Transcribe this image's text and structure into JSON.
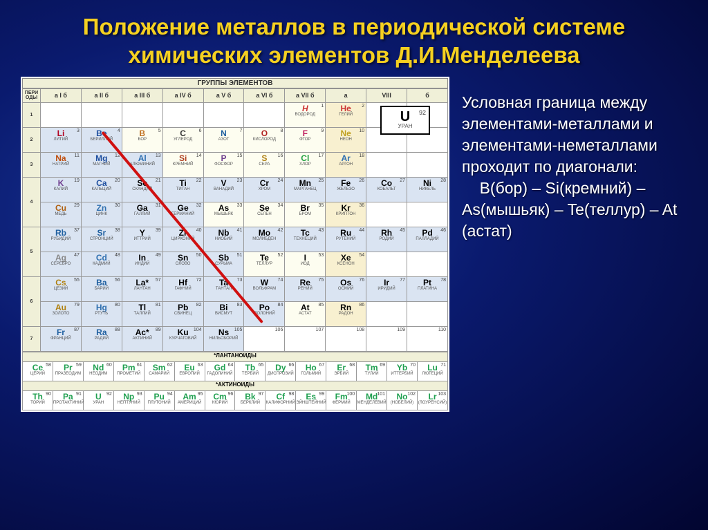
{
  "title": "Положение металлов в периодической системе химических элементов Д.И.Менделеева",
  "table_header": "ГРУППЫ ЭЛЕМЕНТОВ",
  "period_header": "ПЕРИ\nОДЫ",
  "groups": [
    "а I б",
    "а II б",
    "а III б",
    "а IV б",
    "а V б",
    "а VI б",
    "а VII б",
    "а",
    "VIII",
    "б"
  ],
  "periods": [
    "1",
    "2",
    "3",
    "4",
    "5",
    "6",
    "7"
  ],
  "legend": {
    "sym": "U",
    "num": "92",
    "name": "УРАН"
  },
  "side_text": {
    "p1": "Условная граница между элементами-металлами и элементами-неметаллами проходит по диагонали:",
    "p2": "    B(бор) – Si(кремний) – As(мышьяк) – Te(теллур) – At (астат)"
  },
  "series": {
    "lan_label": "*ЛАНТАНОИДЫ",
    "act_label": "*АКТИНОИДЫ"
  },
  "rows": {
    "r1": [
      null,
      null,
      null,
      null,
      null,
      null,
      {
        "class": "nonmetal h",
        "sym": "H",
        "n": "1",
        "name": "ВОДОРОД"
      },
      {
        "class": "noble he",
        "sym": "He",
        "n": "2",
        "name": "ГЕЛИЙ"
      },
      null,
      null
    ],
    "r2": [
      {
        "class": "metal li",
        "sym": "Li",
        "n": "3",
        "name": "ЛИТИЙ"
      },
      {
        "class": "metal be",
        "sym": "Be",
        "n": "4",
        "name": "БЕРИЛЛИЙ"
      },
      {
        "class": "nonmetal b",
        "sym": "B",
        "n": "5",
        "name": "БОР"
      },
      {
        "class": "nonmetal c",
        "sym": "C",
        "n": "6",
        "name": "УГЛЕРОД"
      },
      {
        "class": "nonmetal n",
        "sym": "N",
        "n": "7",
        "name": "АЗОТ"
      },
      {
        "class": "nonmetal o",
        "sym": "O",
        "n": "8",
        "name": "КИСЛОРОД"
      },
      {
        "class": "nonmetal f",
        "sym": "F",
        "n": "9",
        "name": "ФТОР"
      },
      {
        "class": "noble ne",
        "sym": "Ne",
        "n": "10",
        "name": "НЕОН"
      },
      null,
      null
    ],
    "r3": [
      {
        "class": "metal na",
        "sym": "Na",
        "n": "11",
        "name": "НАТРИЙ"
      },
      {
        "class": "metal mg",
        "sym": "Mg",
        "n": "12",
        "name": "МАГНИЙ"
      },
      {
        "class": "metal al",
        "sym": "Al",
        "n": "13",
        "name": "АЛЮМИНИЙ"
      },
      {
        "class": "nonmetal si",
        "sym": "Si",
        "n": "14",
        "name": "КРЕМНИЙ"
      },
      {
        "class": "nonmetal p",
        "sym": "P",
        "n": "15",
        "name": "ФОСФОР"
      },
      {
        "class": "nonmetal s",
        "sym": "S",
        "n": "16",
        "name": "СЕРА"
      },
      {
        "class": "nonmetal cl",
        "sym": "Cl",
        "n": "17",
        "name": "ХЛОР"
      },
      {
        "class": "noble ar",
        "sym": "Ar",
        "n": "18",
        "name": "АРГОН"
      },
      null,
      null
    ],
    "r4a": [
      {
        "class": "metal k",
        "sym": "K",
        "n": "19",
        "name": "КАЛИЙ"
      },
      {
        "class": "metal ca",
        "sym": "Ca",
        "n": "20",
        "name": "КАЛЬЦИЙ"
      },
      {
        "class": "metal",
        "sym": "Sc",
        "n": "21",
        "name": "СКАНДИЙ"
      },
      {
        "class": "metal",
        "sym": "Ti",
        "n": "22",
        "name": "ТИТАН"
      },
      {
        "class": "metal",
        "sym": "V",
        "n": "23",
        "name": "ВАНАДИЙ"
      },
      {
        "class": "metal",
        "sym": "Cr",
        "n": "24",
        "name": "ХРОМ"
      },
      {
        "class": "metal",
        "sym": "Mn",
        "n": "25",
        "name": "МАРГАНЕЦ"
      },
      {
        "class": "metal",
        "sym": "Fe",
        "n": "26",
        "name": "ЖЕЛЕЗО"
      },
      {
        "class": "metal",
        "sym": "Co",
        "n": "27",
        "name": "КОБАЛЬТ"
      },
      {
        "class": "metal",
        "sym": "Ni",
        "n": "28",
        "name": "НИКЕЛЬ"
      }
    ],
    "r4b": [
      {
        "class": "metal cu",
        "sym": "Cu",
        "n": "29",
        "name": "МЕДЬ"
      },
      {
        "class": "metal zn",
        "sym": "Zn",
        "n": "30",
        "name": "ЦИНК"
      },
      {
        "class": "metal",
        "sym": "Ga",
        "n": "31",
        "name": "ГАЛЛИЙ"
      },
      {
        "class": "metal",
        "sym": "Ge",
        "n": "32",
        "name": "ГЕРМАНИЙ"
      },
      {
        "class": "nonmetal",
        "sym": "As",
        "n": "33",
        "name": "МЫШЬЯК"
      },
      {
        "class": "nonmetal",
        "sym": "Se",
        "n": "34",
        "name": "СЕЛЕН"
      },
      {
        "class": "nonmetal",
        "sym": "Br",
        "n": "35",
        "name": "БРОМ"
      },
      {
        "class": "noble",
        "sym": "Kr",
        "n": "36",
        "name": "КРИПТОН"
      },
      null,
      null
    ],
    "r5a": [
      {
        "class": "metal rb",
        "sym": "Rb",
        "n": "37",
        "name": "РУБИДИЙ"
      },
      {
        "class": "metal sr",
        "sym": "Sr",
        "n": "38",
        "name": "СТРОНЦИЙ"
      },
      {
        "class": "metal",
        "sym": "Y",
        "n": "39",
        "name": "ИТТРИЙ"
      },
      {
        "class": "metal",
        "sym": "Zr",
        "n": "40",
        "name": "ЦИРКОНИЙ"
      },
      {
        "class": "metal",
        "sym": "Nb",
        "n": "41",
        "name": "НИОБИЙ"
      },
      {
        "class": "metal",
        "sym": "Mo",
        "n": "42",
        "name": "МОЛИБДЕН"
      },
      {
        "class": "metal",
        "sym": "Tc",
        "n": "43",
        "name": "ТЕХНЕЦИЙ"
      },
      {
        "class": "metal",
        "sym": "Ru",
        "n": "44",
        "name": "РУТЕНИЙ"
      },
      {
        "class": "metal",
        "sym": "Rh",
        "n": "45",
        "name": "РОДИЙ"
      },
      {
        "class": "metal",
        "sym": "Pd",
        "n": "46",
        "name": "ПАЛЛАДИЙ"
      }
    ],
    "r5b": [
      {
        "class": "metal ag",
        "sym": "Ag",
        "n": "47",
        "name": "СЕРЕБРО"
      },
      {
        "class": "metal cd",
        "sym": "Cd",
        "n": "48",
        "name": "КАДМИЙ"
      },
      {
        "class": "metal",
        "sym": "In",
        "n": "49",
        "name": "ИНДИЙ"
      },
      {
        "class": "metal",
        "sym": "Sn",
        "n": "50",
        "name": "ОЛОВО"
      },
      {
        "class": "metal",
        "sym": "Sb",
        "n": "51",
        "name": "СУРЬМА"
      },
      {
        "class": "nonmetal",
        "sym": "Te",
        "n": "52",
        "name": "ТЕЛЛУР"
      },
      {
        "class": "nonmetal",
        "sym": "I",
        "n": "53",
        "name": "ИОД"
      },
      {
        "class": "noble",
        "sym": "Xe",
        "n": "54",
        "name": "КСЕНОН"
      },
      null,
      null
    ],
    "r6a": [
      {
        "class": "metal cs",
        "sym": "Cs",
        "n": "55",
        "name": "ЦЕЗИЙ"
      },
      {
        "class": "metal ba",
        "sym": "Ba",
        "n": "56",
        "name": "БАРИЙ"
      },
      {
        "class": "metal",
        "sym": "La*",
        "n": "57",
        "name": "ЛАНТАН"
      },
      {
        "class": "metal",
        "sym": "Hf",
        "n": "72",
        "name": "ГАФНИЙ"
      },
      {
        "class": "metal",
        "sym": "Ta",
        "n": "73",
        "name": "ТАНТАЛ"
      },
      {
        "class": "metal",
        "sym": "W",
        "n": "74",
        "name": "ВОЛЬФРАМ"
      },
      {
        "class": "metal",
        "sym": "Re",
        "n": "75",
        "name": "РЕНИЙ"
      },
      {
        "class": "metal",
        "sym": "Os",
        "n": "76",
        "name": "ОСМИЙ"
      },
      {
        "class": "metal",
        "sym": "Ir",
        "n": "77",
        "name": "ИРИДИЙ"
      },
      {
        "class": "metal",
        "sym": "Pt",
        "n": "78",
        "name": "ПЛАТИНА"
      }
    ],
    "r6b": [
      {
        "class": "metal au",
        "sym": "Au",
        "n": "79",
        "name": "ЗОЛОТО"
      },
      {
        "class": "metal hg",
        "sym": "Hg",
        "n": "80",
        "name": "РТУТЬ"
      },
      {
        "class": "metal",
        "sym": "Tl",
        "n": "81",
        "name": "ТАЛЛИЙ"
      },
      {
        "class": "metal",
        "sym": "Pb",
        "n": "82",
        "name": "СВИНЕЦ"
      },
      {
        "class": "metal",
        "sym": "Bi",
        "n": "83",
        "name": "ВИСМУТ"
      },
      {
        "class": "metal",
        "sym": "Po",
        "n": "84",
        "name": "ПОЛОНИЙ"
      },
      {
        "class": "nonmetal",
        "sym": "At",
        "n": "85",
        "name": "АСТАТ"
      },
      {
        "class": "noble",
        "sym": "Rn",
        "n": "86",
        "name": "РАДОН"
      },
      null,
      null
    ],
    "r7a": [
      {
        "class": "metal fr",
        "sym": "Fr",
        "n": "87",
        "name": "ФРАНЦИЙ"
      },
      {
        "class": "metal ra",
        "sym": "Ra",
        "n": "88",
        "name": "РАДИЙ"
      },
      {
        "class": "metal",
        "sym": "Ac*",
        "n": "89",
        "name": "АКТИНИЙ"
      },
      {
        "class": "metal",
        "sym": "Ku",
        "n": "104",
        "name": "КУРЧАТОВИЙ"
      },
      {
        "class": "metal",
        "sym": "Ns",
        "n": "105",
        "name": "НИЛЬСБОРИЙ"
      },
      {
        "class": "",
        "sym": "",
        "n": "106",
        "name": ""
      },
      {
        "class": "",
        "sym": "",
        "n": "107",
        "name": ""
      },
      {
        "class": "",
        "sym": "",
        "n": "108",
        "name": ""
      },
      {
        "class": "",
        "sym": "",
        "n": "109",
        "name": ""
      },
      {
        "class": "",
        "sym": "",
        "n": "110",
        "name": ""
      }
    ],
    "lan": [
      {
        "sym": "Ce",
        "n": "58",
        "name": "ЦЕРИЙ"
      },
      {
        "sym": "Pr",
        "n": "59",
        "name": "ПРАЗЕОДИМ"
      },
      {
        "sym": "Nd",
        "n": "60",
        "name": "НЕОДИМ"
      },
      {
        "sym": "Pm",
        "n": "61",
        "name": "ПРОМЕТИЙ"
      },
      {
        "sym": "Sm",
        "n": "62",
        "name": "САМАРИЙ"
      },
      {
        "sym": "Eu",
        "n": "63",
        "name": "ЕВРОПИЙ"
      },
      {
        "sym": "Gd",
        "n": "64",
        "name": "ГАДОЛИНИЙ"
      },
      {
        "sym": "Tb",
        "n": "65",
        "name": "ТЕРБИЙ"
      },
      {
        "sym": "Dy",
        "n": "66",
        "name": "ДИСПРОЗИЙ"
      },
      {
        "sym": "Ho",
        "n": "67",
        "name": "ГОЛЬМИЙ"
      },
      {
        "sym": "Er",
        "n": "68",
        "name": "ЭРБИЙ"
      },
      {
        "sym": "Tm",
        "n": "69",
        "name": "ТУЛИЙ"
      },
      {
        "sym": "Yb",
        "n": "70",
        "name": "ИТТЕРБИЙ"
      },
      {
        "sym": "Lu",
        "n": "71",
        "name": "ЛЮТЕЦИЙ"
      }
    ],
    "act": [
      {
        "sym": "Th",
        "n": "90",
        "name": "ТОРИЙ"
      },
      {
        "sym": "Pa",
        "n": "91",
        "name": "ПРОТАКТИНИЙ"
      },
      {
        "sym": "U",
        "n": "92",
        "name": "УРАН"
      },
      {
        "sym": "Np",
        "n": "93",
        "name": "НЕПТУНИЙ"
      },
      {
        "sym": "Pu",
        "n": "94",
        "name": "ПЛУТОНИЙ"
      },
      {
        "sym": "Am",
        "n": "95",
        "name": "АМЕРИЦИЙ"
      },
      {
        "sym": "Cm",
        "n": "96",
        "name": "КЮРИЙ"
      },
      {
        "sym": "Bk",
        "n": "97",
        "name": "БЕРКЛИЙ"
      },
      {
        "sym": "Cf",
        "n": "98",
        "name": "КАЛИФОРНИЙ"
      },
      {
        "sym": "Es",
        "n": "99",
        "name": "ЭЙНШТЕЙНИЙ"
      },
      {
        "sym": "Fm",
        "n": "100",
        "name": "ФЕРМИЙ"
      },
      {
        "sym": "Md",
        "n": "101",
        "name": "МЕНДЕЛЕВИЙ"
      },
      {
        "sym": "No",
        "n": "102",
        "name": "(НОБЕЛИЙ)"
      },
      {
        "sym": "Lr",
        "n": "103",
        "name": "(ЛОУРЕНСИЙ)"
      }
    ]
  },
  "colors": {
    "title": "#f5d020",
    "side_text": "#ffffff",
    "diagonal": "#d01010",
    "metal_bg": "#dae4f2",
    "nonmetal_bg": "#fdfdf0",
    "noble_bg": "#f8f0d0",
    "header_bg": "#f0f0d8",
    "bg_center": "#1a3a9e",
    "bg_edge": "#020530"
  }
}
